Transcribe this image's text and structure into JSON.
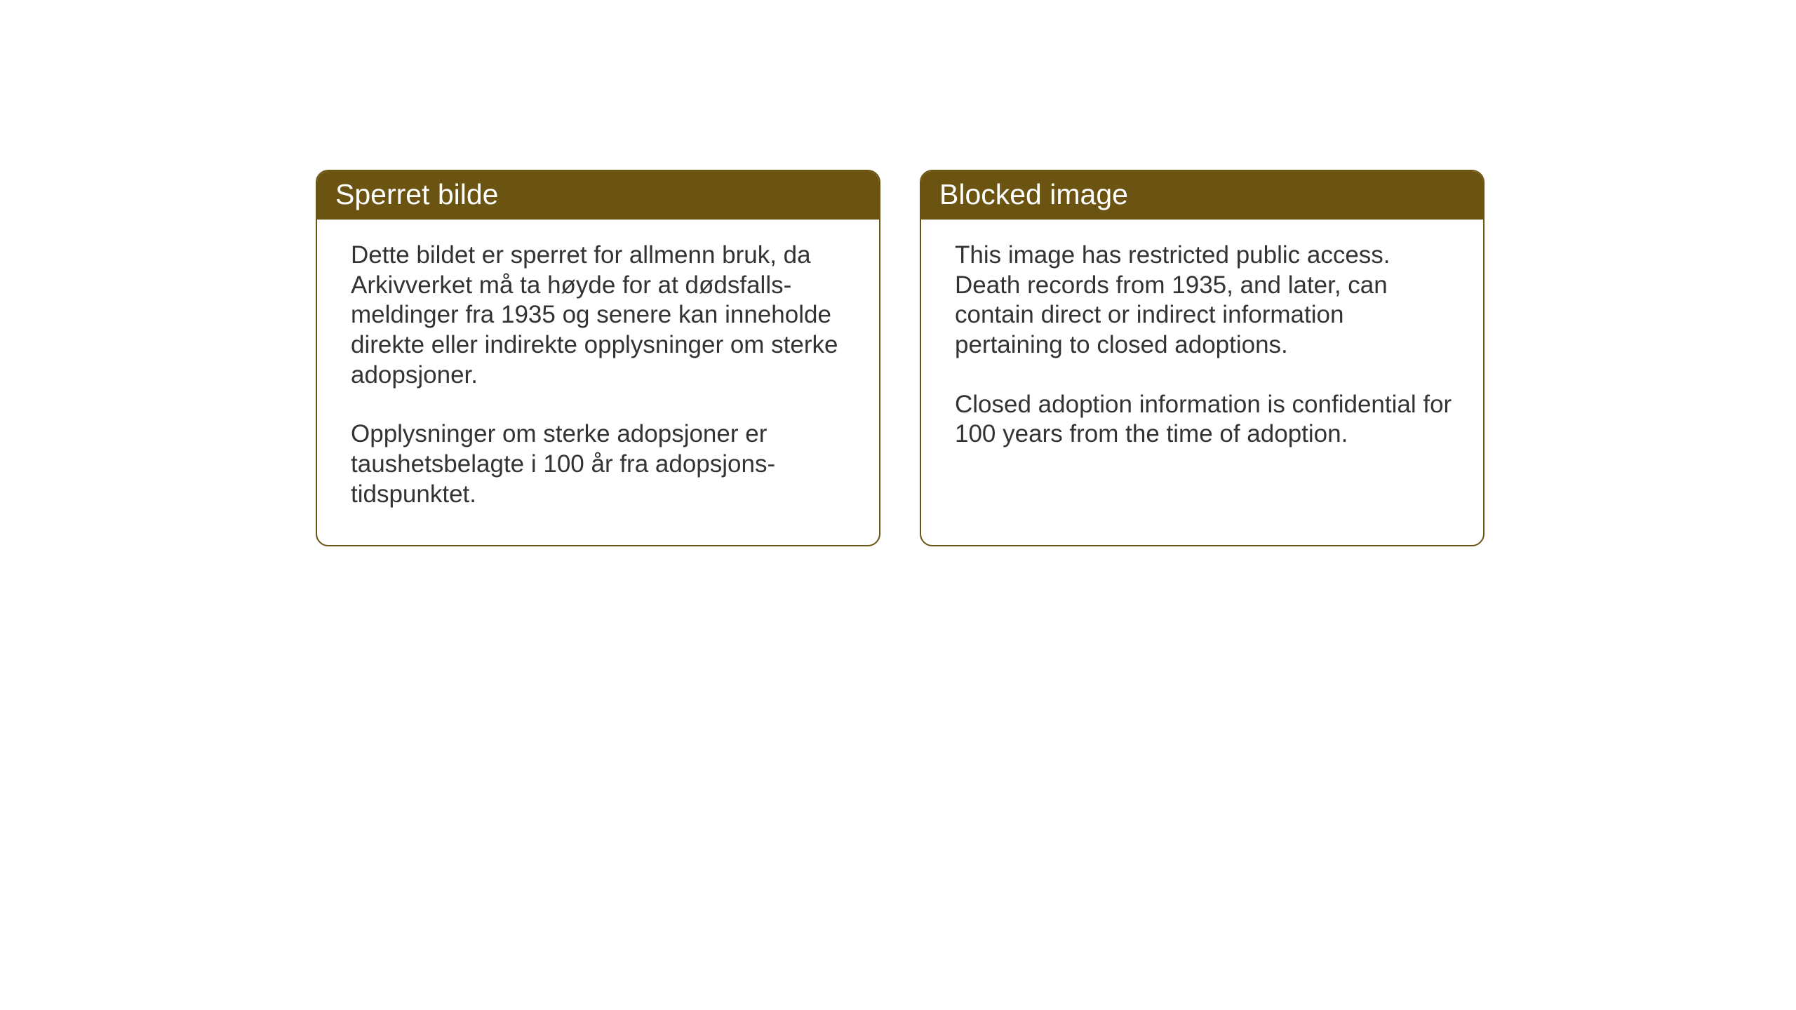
{
  "cards": [
    {
      "title": "Sperret bilde",
      "paragraph1": "Dette bildet er sperret for allmenn bruk, da Arkivverket må ta høyde for at dødsfalls-meldinger fra 1935 og senere kan inneholde direkte eller indirekte opplysninger om sterke adopsjoner.",
      "paragraph2": "Opplysninger om sterke adopsjoner er taushetsbelagte i 100 år fra adopsjons-tidspunktet."
    },
    {
      "title": "Blocked image",
      "paragraph1": "This image has restricted public access. Death records from 1935, and later, can contain direct or indirect information pertaining to closed adoptions.",
      "paragraph2": "Closed adoption information is confidential for 100 years from the time of adoption."
    }
  ],
  "colors": {
    "background": "#ffffff",
    "card_border": "#6b5312",
    "card_header_bg": "#6b5312",
    "card_header_text": "#ffffff",
    "body_text": "#333333"
  },
  "typography": {
    "header_fontsize": 41,
    "body_fontsize": 35
  }
}
